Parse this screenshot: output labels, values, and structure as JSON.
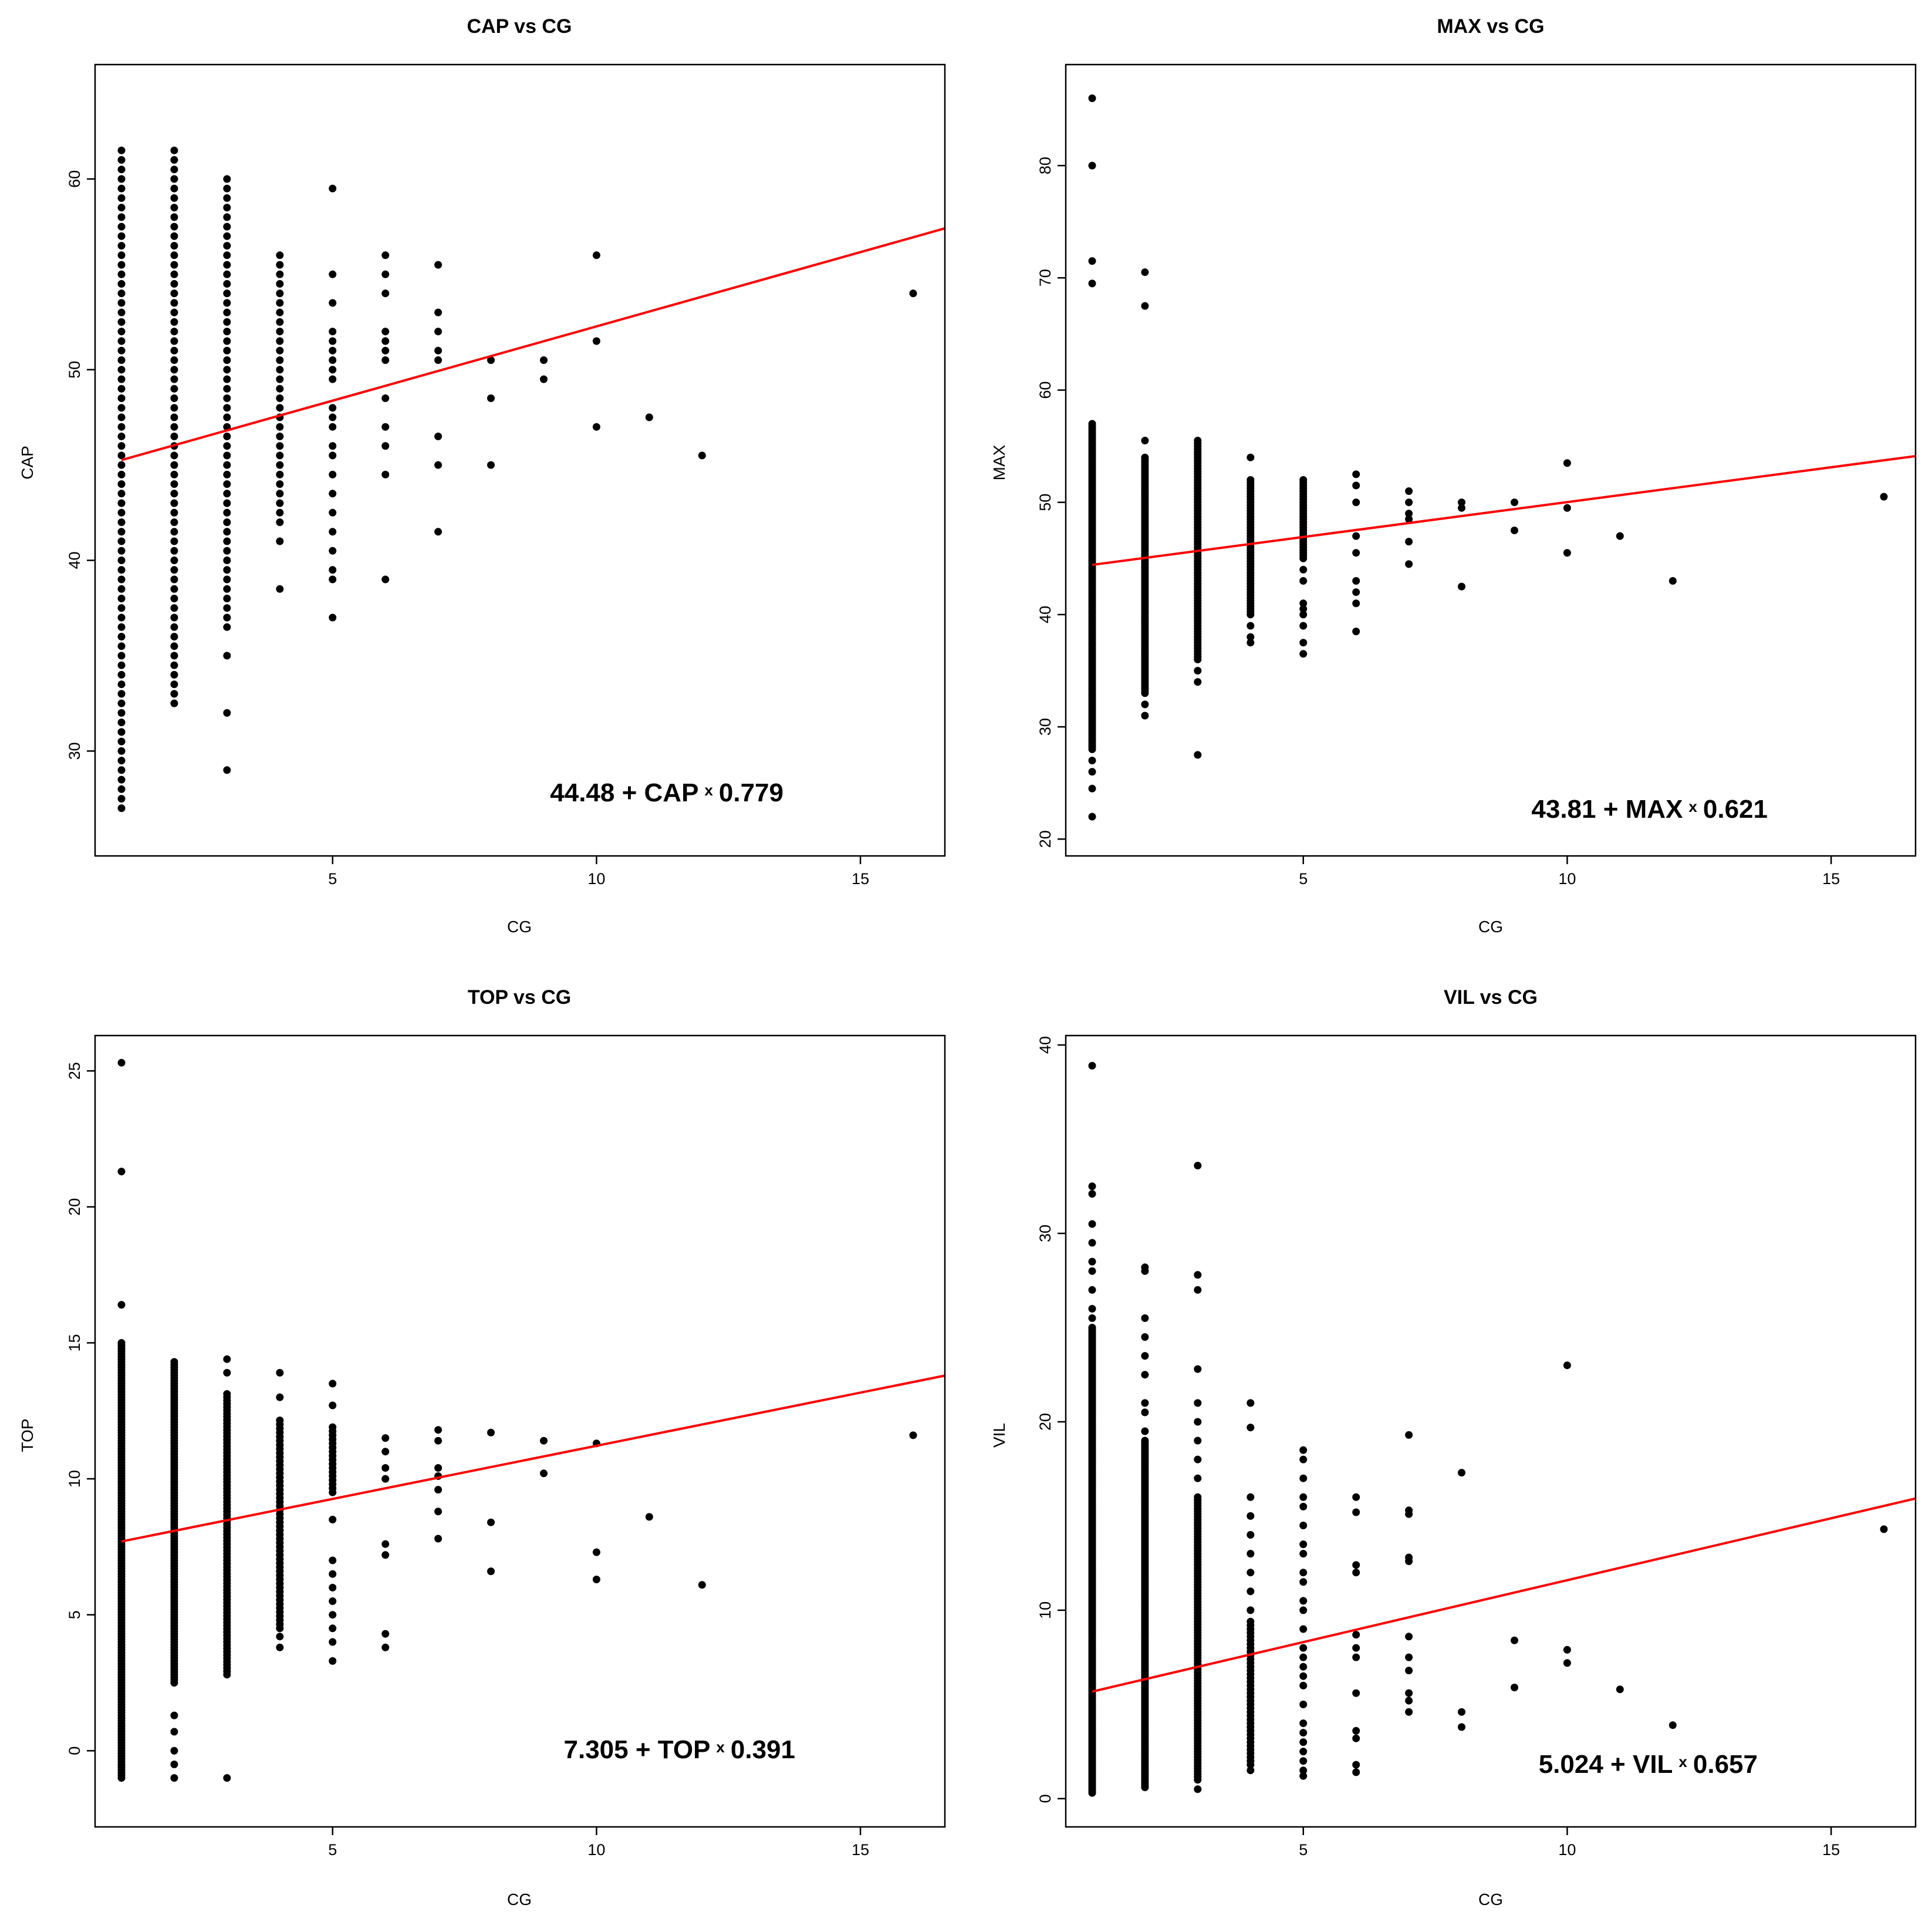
{
  "colors": {
    "points": "#000000",
    "fit_line": "#ff0000",
    "frame": "#000000"
  },
  "chart_data": [
    {
      "type": "scatter",
      "title": "CAP vs CG",
      "xlabel": "CG",
      "ylabel": "CAP",
      "xlim": [
        0.5,
        16.6
      ],
      "ylim": [
        24.5,
        66
      ],
      "xticks": [
        5,
        10,
        15
      ],
      "yticks": [
        30,
        40,
        50,
        60
      ],
      "fit": {
        "intercept": 44.48,
        "slope": 0.779,
        "x_start": 1,
        "x_end": 16.6
      },
      "equation": {
        "intercept": "44.48",
        "var": "CAP",
        "times": "x",
        "slope": "0.779"
      },
      "columns": [
        {
          "x": 1,
          "min": 27,
          "max": 61.5,
          "step": 0.5
        },
        {
          "x": 2,
          "min": 32.5,
          "max": 61.5,
          "step": 0.5
        },
        {
          "x": 3,
          "min": 36.5,
          "max": 60,
          "step": 0.5
        },
        {
          "x": 4,
          "min": 42,
          "max": 56,
          "step": 0.5
        }
      ],
      "points": [
        [
          3,
          35
        ],
        [
          3,
          32
        ],
        [
          3,
          29
        ],
        [
          4,
          41
        ],
        [
          4,
          38.5
        ],
        [
          5,
          59.5
        ],
        [
          5,
          55
        ],
        [
          5,
          53.5
        ],
        [
          5,
          52
        ],
        [
          5,
          51.5
        ],
        [
          5,
          51
        ],
        [
          5,
          50.5
        ],
        [
          5,
          50
        ],
        [
          5,
          49.5
        ],
        [
          5,
          48
        ],
        [
          5,
          47.5
        ],
        [
          5,
          47
        ],
        [
          5,
          46
        ],
        [
          5,
          45.5
        ],
        [
          5,
          44.5
        ],
        [
          5,
          43.5
        ],
        [
          5,
          42.5
        ],
        [
          5,
          41.5
        ],
        [
          5,
          40.5
        ],
        [
          5,
          39.5
        ],
        [
          5,
          39
        ],
        [
          5,
          37
        ],
        [
          6,
          56
        ],
        [
          6,
          55
        ],
        [
          6,
          54
        ],
        [
          6,
          52
        ],
        [
          6,
          51.5
        ],
        [
          6,
          51
        ],
        [
          6,
          50.5
        ],
        [
          6,
          48.5
        ],
        [
          6,
          47
        ],
        [
          6,
          46
        ],
        [
          6,
          44.5
        ],
        [
          6,
          39
        ],
        [
          7,
          55.5
        ],
        [
          7,
          53
        ],
        [
          7,
          52
        ],
        [
          7,
          51
        ],
        [
          7,
          50.5
        ],
        [
          7,
          46.5
        ],
        [
          7,
          45
        ],
        [
          7,
          41.5
        ],
        [
          8,
          50.5
        ],
        [
          8,
          48.5
        ],
        [
          8,
          45
        ],
        [
          9,
          50.5
        ],
        [
          9,
          49.5
        ],
        [
          10,
          56
        ],
        [
          10,
          51.5
        ],
        [
          10,
          47
        ],
        [
          11,
          47.5
        ],
        [
          12,
          45.5
        ],
        [
          16,
          54
        ]
      ]
    },
    {
      "type": "scatter",
      "title": "MAX vs CG",
      "xlabel": "CG",
      "ylabel": "MAX",
      "xlim": [
        0.5,
        16.6
      ],
      "ylim": [
        18.5,
        89
      ],
      "xticks": [
        5,
        10,
        15
      ],
      "yticks": [
        20,
        30,
        40,
        50,
        60,
        70,
        80
      ],
      "fit": {
        "intercept": 43.81,
        "slope": 0.621,
        "x_start": 1,
        "x_end": 16.6
      },
      "equation": {
        "intercept": "43.81",
        "var": "MAX",
        "times": "x",
        "slope": "0.621"
      },
      "columns": [
        {
          "x": 1,
          "min": 28,
          "max": 57,
          "step": 0.2
        },
        {
          "x": 2,
          "min": 33,
          "max": 54,
          "step": 0.2
        },
        {
          "x": 3,
          "min": 36,
          "max": 55.5,
          "step": 0.25
        },
        {
          "x": 4,
          "min": 40,
          "max": 52,
          "step": 0.25
        },
        {
          "x": 5,
          "min": 45,
          "max": 52,
          "step": 0.25
        }
      ],
      "points": [
        [
          1,
          86
        ],
        [
          1,
          80
        ],
        [
          1,
          71.5
        ],
        [
          1,
          69.5
        ],
        [
          1,
          27
        ],
        [
          1,
          26
        ],
        [
          1,
          24.5
        ],
        [
          1,
          22
        ],
        [
          2,
          70.5
        ],
        [
          2,
          67.5
        ],
        [
          2,
          55.5
        ],
        [
          2,
          32
        ],
        [
          2,
          31
        ],
        [
          3,
          35
        ],
        [
          3,
          34
        ],
        [
          3,
          27.5
        ],
        [
          4,
          54
        ],
        [
          4,
          38
        ],
        [
          4,
          37.5
        ],
        [
          4,
          39
        ],
        [
          5,
          44
        ],
        [
          5,
          43
        ],
        [
          5,
          41
        ],
        [
          5,
          40.5
        ],
        [
          5,
          40
        ],
        [
          5,
          39
        ],
        [
          5,
          37.5
        ],
        [
          5,
          36.5
        ],
        [
          6,
          52.5
        ],
        [
          6,
          51.5
        ],
        [
          6,
          50
        ],
        [
          6,
          47
        ],
        [
          6,
          45.5
        ],
        [
          6,
          43
        ],
        [
          6,
          42
        ],
        [
          6,
          41
        ],
        [
          6,
          38.5
        ],
        [
          7,
          51
        ],
        [
          7,
          50
        ],
        [
          7,
          49
        ],
        [
          7,
          48.5
        ],
        [
          7,
          46.5
        ],
        [
          7,
          44.5
        ],
        [
          8,
          50
        ],
        [
          8,
          49.5
        ],
        [
          8,
          42.5
        ],
        [
          9,
          50
        ],
        [
          9,
          47.5
        ],
        [
          10,
          53.5
        ],
        [
          10,
          49.5
        ],
        [
          10,
          45.5
        ],
        [
          11,
          47
        ],
        [
          12,
          43
        ],
        [
          16,
          50.5
        ]
      ]
    },
    {
      "type": "scatter",
      "title": "TOP vs CG",
      "xlabel": "CG",
      "ylabel": "TOP",
      "xlim": [
        0.5,
        16.6
      ],
      "ylim": [
        -2.8,
        26.3
      ],
      "xticks": [
        5,
        10,
        15
      ],
      "yticks": [
        0,
        5,
        10,
        15,
        20,
        25
      ],
      "fit": {
        "intercept": 7.305,
        "slope": 0.391,
        "x_start": 1,
        "x_end": 16.6
      },
      "equation": {
        "intercept": "7.305",
        "var": "TOP",
        "times": "x",
        "slope": "0.391"
      },
      "columns": [
        {
          "x": 1,
          "min": -1,
          "max": 15,
          "step": 0.1
        },
        {
          "x": 2,
          "min": 2.5,
          "max": 14.3,
          "step": 0.1
        },
        {
          "x": 3,
          "min": 2.8,
          "max": 13.2,
          "step": 0.12
        },
        {
          "x": 4,
          "min": 4.5,
          "max": 12.2,
          "step": 0.15
        },
        {
          "x": 5,
          "min": 9.5,
          "max": 12,
          "step": 0.15
        }
      ],
      "points": [
        [
          1,
          25.3
        ],
        [
          1,
          21.3
        ],
        [
          1,
          16.4
        ],
        [
          2,
          1.3
        ],
        [
          2,
          0.7
        ],
        [
          2,
          0
        ],
        [
          2,
          -0.5
        ],
        [
          2,
          -1
        ],
        [
          3,
          14.4
        ],
        [
          3,
          13.9
        ],
        [
          3,
          -1
        ],
        [
          4,
          13.9
        ],
        [
          4,
          13
        ],
        [
          4,
          4.2
        ],
        [
          4,
          3.8
        ],
        [
          5,
          13.5
        ],
        [
          5,
          12.7
        ],
        [
          5,
          8.5
        ],
        [
          5,
          7
        ],
        [
          5,
          6.5
        ],
        [
          5,
          6
        ],
        [
          5,
          5.5
        ],
        [
          5,
          5
        ],
        [
          5,
          4.5
        ],
        [
          5,
          4
        ],
        [
          5,
          3.3
        ],
        [
          6,
          11.5
        ],
        [
          6,
          11
        ],
        [
          6,
          10.4
        ],
        [
          6,
          10
        ],
        [
          6,
          7.6
        ],
        [
          6,
          7.2
        ],
        [
          6,
          4.3
        ],
        [
          6,
          3.8
        ],
        [
          7,
          11.8
        ],
        [
          7,
          11.4
        ],
        [
          7,
          10.4
        ],
        [
          7,
          10.1
        ],
        [
          7,
          9.6
        ],
        [
          7,
          8.8
        ],
        [
          7,
          7.8
        ],
        [
          8,
          11.7
        ],
        [
          8,
          8.4
        ],
        [
          8,
          6.6
        ],
        [
          9,
          11.4
        ],
        [
          9,
          10.2
        ],
        [
          10,
          11.3
        ],
        [
          10,
          7.3
        ],
        [
          10,
          6.3
        ],
        [
          11,
          8.6
        ],
        [
          12,
          6.1
        ],
        [
          16,
          11.6
        ]
      ]
    },
    {
      "type": "scatter",
      "title": "VIL vs CG",
      "xlabel": "CG",
      "ylabel": "VIL",
      "xlim": [
        0.5,
        16.6
      ],
      "ylim": [
        -1.5,
        40.5
      ],
      "xticks": [
        5,
        10,
        15
      ],
      "yticks": [
        0,
        10,
        20,
        30,
        40
      ],
      "fit": {
        "intercept": 5.024,
        "slope": 0.657,
        "x_start": 1,
        "x_end": 16.6
      },
      "equation": {
        "intercept": "5.024",
        "var": "VIL",
        "times": "x",
        "slope": "0.657"
      },
      "columns": [
        {
          "x": 1,
          "min": 0.3,
          "max": 25,
          "step": 0.1
        },
        {
          "x": 2,
          "min": 0.6,
          "max": 19,
          "step": 0.1
        },
        {
          "x": 3,
          "min": 1,
          "max": 16,
          "step": 0.15
        },
        {
          "x": 4,
          "min": 1.8,
          "max": 9.5,
          "step": 0.2
        }
      ],
      "points": [
        [
          1,
          38.9
        ],
        [
          1,
          32.5
        ],
        [
          1,
          32.1
        ],
        [
          1,
          30.5
        ],
        [
          1,
          29.5
        ],
        [
          1,
          28.5
        ],
        [
          1,
          28
        ],
        [
          1,
          27
        ],
        [
          1,
          26
        ],
        [
          1,
          25.5
        ],
        [
          2,
          28.2
        ],
        [
          2,
          28
        ],
        [
          2,
          25.5
        ],
        [
          2,
          24.5
        ],
        [
          2,
          23.5
        ],
        [
          2,
          22.5
        ],
        [
          2,
          21
        ],
        [
          2,
          20.5
        ],
        [
          2,
          19.5
        ],
        [
          3,
          33.6
        ],
        [
          3,
          27.8
        ],
        [
          3,
          27
        ],
        [
          3,
          22.8
        ],
        [
          3,
          21
        ],
        [
          3,
          20
        ],
        [
          3,
          19
        ],
        [
          3,
          18
        ],
        [
          3,
          17
        ],
        [
          3,
          0.5
        ],
        [
          4,
          21
        ],
        [
          4,
          19.7
        ],
        [
          4,
          16
        ],
        [
          4,
          15
        ],
        [
          4,
          14
        ],
        [
          4,
          13
        ],
        [
          4,
          12
        ],
        [
          4,
          11
        ],
        [
          4,
          10
        ],
        [
          4,
          1.5
        ],
        [
          5,
          18.5
        ],
        [
          5,
          18
        ],
        [
          5,
          17
        ],
        [
          5,
          16
        ],
        [
          5,
          15.5
        ],
        [
          5,
          14.5
        ],
        [
          5,
          13.5
        ],
        [
          5,
          13
        ],
        [
          5,
          12
        ],
        [
          5,
          11.5
        ],
        [
          5,
          10.5
        ],
        [
          5,
          10
        ],
        [
          5,
          9
        ],
        [
          5,
          8
        ],
        [
          5,
          7.5
        ],
        [
          5,
          7
        ],
        [
          5,
          6.5
        ],
        [
          5,
          6
        ],
        [
          5,
          5
        ],
        [
          5,
          4
        ],
        [
          5,
          3.5
        ],
        [
          5,
          3
        ],
        [
          5,
          2.5
        ],
        [
          5,
          2
        ],
        [
          5,
          1.5
        ],
        [
          5,
          1.2
        ],
        [
          6,
          16
        ],
        [
          6,
          15.2
        ],
        [
          6,
          12.4
        ],
        [
          6,
          12
        ],
        [
          6,
          8.7
        ],
        [
          6,
          8
        ],
        [
          6,
          7.5
        ],
        [
          6,
          5.6
        ],
        [
          6,
          3.6
        ],
        [
          6,
          3.2
        ],
        [
          6,
          1.8
        ],
        [
          6,
          1.4
        ],
        [
          7,
          19.3
        ],
        [
          7,
          15.3
        ],
        [
          7,
          15.1
        ],
        [
          7,
          12.8
        ],
        [
          7,
          12.6
        ],
        [
          7,
          8.6
        ],
        [
          7,
          7.5
        ],
        [
          7,
          6.8
        ],
        [
          7,
          5.6
        ],
        [
          7,
          5.2
        ],
        [
          7,
          4.6
        ],
        [
          8,
          17.3
        ],
        [
          8,
          4.6
        ],
        [
          8,
          3.8
        ],
        [
          9,
          8.4
        ],
        [
          9,
          5.9
        ],
        [
          10,
          23
        ],
        [
          10,
          7.9
        ],
        [
          10,
          7.2
        ],
        [
          11,
          5.8
        ],
        [
          12,
          3.9
        ],
        [
          16,
          14.3
        ]
      ]
    }
  ]
}
